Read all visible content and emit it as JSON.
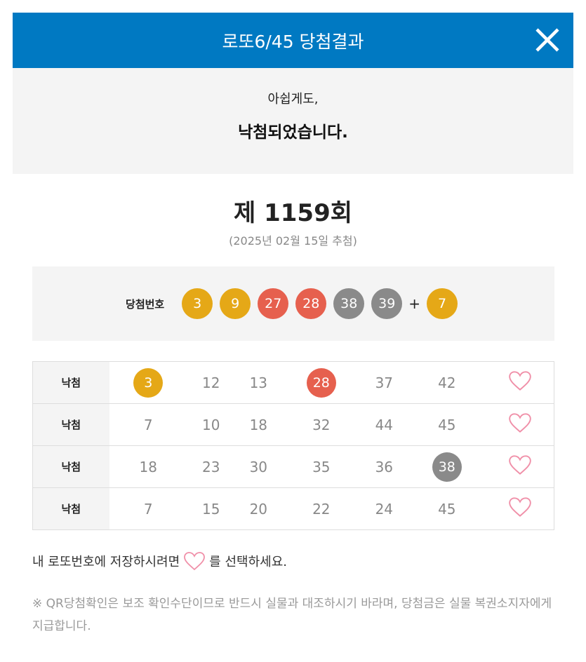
{
  "header": {
    "title": "로또6/45 당첨결과",
    "close_icon": "close-icon"
  },
  "message": {
    "line1": "아쉽게도,",
    "line2": "낙첨되었습니다."
  },
  "draw": {
    "round": "제 1159회",
    "date": "(2025년 02월 15일 추첨)"
  },
  "winning": {
    "label": "당첨번호",
    "numbers": [
      "3",
      "9",
      "27",
      "28",
      "38",
      "39"
    ],
    "plus": "+",
    "bonus": "7"
  },
  "colors": {
    "header": "#0079c2",
    "yellow": "#e5a817",
    "red": "#e6604e",
    "gray": "#8a8a8a",
    "heart": "#f08fa8"
  },
  "tickets": [
    {
      "result": "낙첨",
      "numbers": [
        "3",
        "12",
        "13",
        "28",
        "37",
        "42"
      ],
      "matched": [
        0,
        3
      ]
    },
    {
      "result": "낙첨",
      "numbers": [
        "7",
        "10",
        "18",
        "32",
        "44",
        "45"
      ],
      "matched": []
    },
    {
      "result": "낙첨",
      "numbers": [
        "18",
        "23",
        "30",
        "35",
        "36",
        "38"
      ],
      "matched": [
        5
      ]
    },
    {
      "result": "낙첨",
      "numbers": [
        "7",
        "15",
        "20",
        "22",
        "24",
        "45"
      ],
      "matched": []
    }
  ],
  "footer": {
    "save_before": "내 로또번호에 저장하시려면",
    "save_after": "를 선택하세요.",
    "notice": "※ QR당첨확인은 보조 확인수단이므로 반드시 실물과 대조하시기 바라며, 당첨금은 실물 복권소지자에게 지급합니다."
  }
}
